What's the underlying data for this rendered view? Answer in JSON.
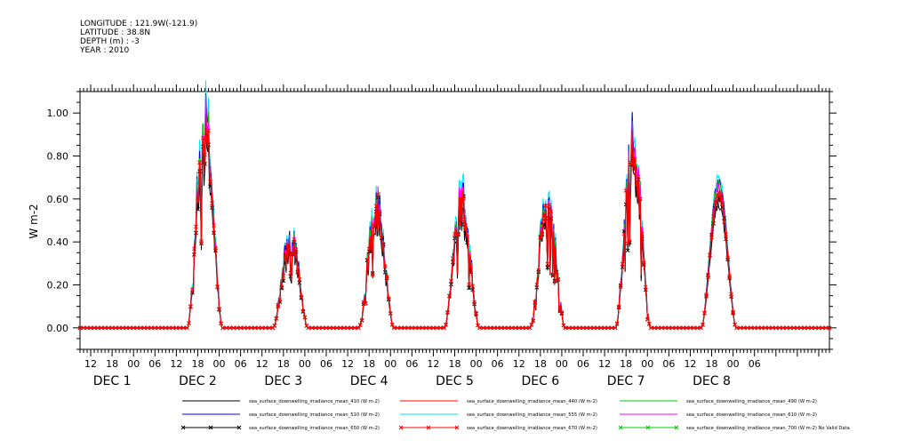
{
  "header": {
    "lines": [
      "LONGITUDE : 121.9W(-121.9)",
      "LATITUDE : 38.8N",
      "DEPTH (m) : -3",
      "YEAR : 2010"
    ]
  },
  "chart_data": {
    "type": "line",
    "title": "",
    "xlabel": "",
    "ylabel": "W m-2",
    "ylim": [
      -0.1,
      1.1
    ],
    "yticks": [
      "0.00",
      "0.20",
      "0.40",
      "0.60",
      "0.80",
      "1.00"
    ],
    "x_range_hours": [
      -15,
      195
    ],
    "hour_tick_labels": [
      "12",
      "18",
      "00",
      "06",
      "12",
      "18",
      "00",
      "06",
      "12",
      "18",
      "00",
      "06",
      "12",
      "18",
      "00",
      "06",
      "12",
      "18",
      "00",
      "06",
      "12",
      "18",
      "00",
      "06",
      "12",
      "18",
      "00",
      "06",
      "12",
      "18",
      "00",
      "06"
    ],
    "day_labels": [
      "DEC 1",
      "DEC 2",
      "DEC 3",
      "DEC 4",
      "DEC 5",
      "DEC 6",
      "DEC 7",
      "DEC 8"
    ],
    "grid": false,
    "legend_position": "bottom",
    "daily_peaks": [
      {
        "day": "DEC 1",
        "peak": 0.95,
        "center_hour": 20,
        "noisy": true
      },
      {
        "day": "DEC 2",
        "peak": 0.42,
        "center_hour": 44,
        "noisy": true
      },
      {
        "day": "DEC 3",
        "peak": 0.58,
        "center_hour": 68,
        "noisy": true
      },
      {
        "day": "DEC 4",
        "peak": 0.6,
        "center_hour": 92,
        "noisy": true
      },
      {
        "day": "DEC 5",
        "peak": 0.58,
        "center_hour": 116,
        "noisy": true
      },
      {
        "day": "DEC 6",
        "peak": 0.85,
        "center_hour": 140,
        "noisy": true
      },
      {
        "day": "DEC 7",
        "peak": 0.65,
        "center_hour": 164,
        "noisy": false
      }
    ],
    "series": [
      {
        "name": "sea_surface_downwelling_irradiance_mean_410 (W m-2)",
        "color": "#000000",
        "scale": 0.88,
        "marker": "none"
      },
      {
        "name": "sea_surface_downwelling_irradiance_mean_440 (W m-2)",
        "color": "#ff0000",
        "scale": 0.95,
        "marker": "none"
      },
      {
        "name": "sea_surface_downwelling_irradiance_mean_490 (W m-2)",
        "color": "#00cc00",
        "scale": 1.02,
        "marker": "none"
      },
      {
        "name": "sea_surface_downwelling_irradiance_mean_510 (W m-2)",
        "color": "#0000ff",
        "scale": 1.04,
        "marker": "none"
      },
      {
        "name": "sea_surface_downwelling_irradiance_mean_555 (W m-2)",
        "color": "#00e5ee",
        "scale": 1.08,
        "marker": "none"
      },
      {
        "name": "sea_surface_downwelling_irradiance_mean_610 (W m-2)",
        "color": "#ff00ff",
        "scale": 1.0,
        "marker": "none"
      },
      {
        "name": "sea_surface_downwelling_irradiance_mean_650 (W m-2)",
        "color": "#000000",
        "scale": 0.93,
        "marker": "x"
      },
      {
        "name": "sea_surface_downwelling_irradiance_mean_670 (W m-2)",
        "color": "#ff0000",
        "scale": 0.96,
        "marker": "x"
      },
      {
        "name": "sea_surface_downwelling_irradiance_mean_700 (W m-2) No Valid Data",
        "color": "#00cc00",
        "scale": 0,
        "marker": "x"
      }
    ]
  }
}
